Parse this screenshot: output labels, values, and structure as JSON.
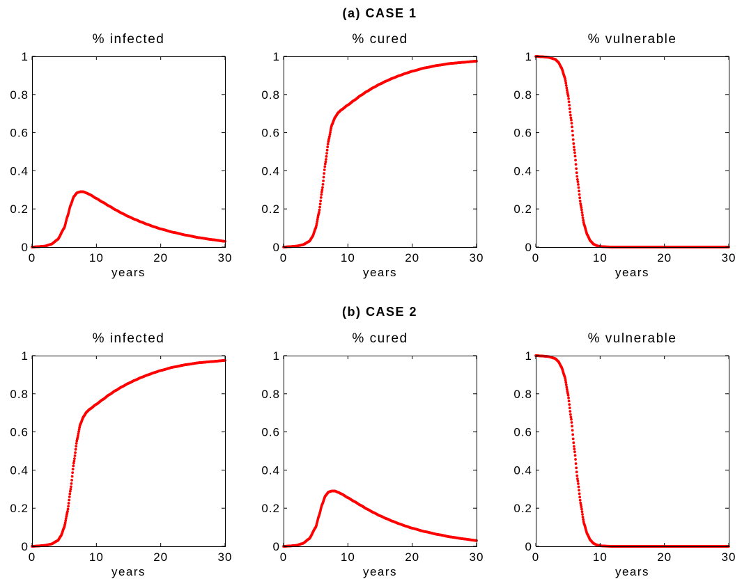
{
  "figure": {
    "rows": [
      {
        "title": "(a) CASE 1"
      },
      {
        "title": "(b) CASE 2"
      }
    ]
  },
  "chart_data": [
    {
      "type": "scatter",
      "row": 0,
      "col": 0,
      "title": "% infected",
      "xlabel": "years",
      "ylabel": "",
      "xlim": [
        0,
        30
      ],
      "ylim": [
        0,
        1
      ],
      "xticks": [
        0,
        10,
        20,
        30
      ],
      "yticks": [
        0,
        0.2,
        0.4,
        0.6,
        0.8,
        1
      ],
      "xtick_labels": [
        "0",
        "10",
        "20",
        "30"
      ],
      "ytick_labels": [
        "0",
        "0.2",
        "0.4",
        "0.6",
        "0.8",
        "1"
      ],
      "color": "#ff0000",
      "x": [
        0,
        1,
        2,
        3,
        4,
        5,
        5.5,
        6,
        6.5,
        7,
        7.5,
        8,
        8.5,
        9,
        10,
        11,
        12,
        13,
        14,
        15,
        16,
        17,
        18,
        19,
        20,
        22,
        24,
        26,
        28,
        30
      ],
      "y": [
        0.0,
        0.002,
        0.005,
        0.015,
        0.04,
        0.1,
        0.16,
        0.22,
        0.265,
        0.285,
        0.29,
        0.29,
        0.283,
        0.275,
        0.255,
        0.235,
        0.215,
        0.195,
        0.177,
        0.16,
        0.145,
        0.131,
        0.118,
        0.106,
        0.095,
        0.077,
        0.062,
        0.049,
        0.039,
        0.03
      ]
    },
    {
      "type": "scatter",
      "row": 0,
      "col": 1,
      "title": "% cured",
      "xlabel": "years",
      "ylabel": "",
      "xlim": [
        0,
        30
      ],
      "ylim": [
        0,
        1
      ],
      "xticks": [
        0,
        10,
        20,
        30
      ],
      "yticks": [
        0,
        0.2,
        0.4,
        0.6,
        0.8,
        1
      ],
      "xtick_labels": [
        "0",
        "10",
        "20",
        "30"
      ],
      "ytick_labels": [
        "0",
        "0.2",
        "0.4",
        "0.6",
        "0.8",
        "1"
      ],
      "color": "#ff0000",
      "x": [
        0,
        1,
        2,
        3,
        4,
        4.5,
        5,
        5.5,
        6,
        6.5,
        7,
        7.5,
        8,
        8.5,
        9,
        10,
        11,
        12,
        13,
        14,
        15,
        16,
        17,
        18,
        19,
        20,
        22,
        24,
        26,
        28,
        30
      ],
      "y": [
        0.0,
        0.002,
        0.005,
        0.012,
        0.03,
        0.055,
        0.1,
        0.18,
        0.3,
        0.44,
        0.56,
        0.64,
        0.68,
        0.705,
        0.72,
        0.745,
        0.77,
        0.795,
        0.817,
        0.837,
        0.855,
        0.871,
        0.886,
        0.899,
        0.911,
        0.922,
        0.94,
        0.953,
        0.963,
        0.969,
        0.975
      ]
    },
    {
      "type": "scatter",
      "row": 0,
      "col": 2,
      "title": "% vulnerable",
      "xlabel": "years",
      "ylabel": "",
      "xlim": [
        0,
        30
      ],
      "ylim": [
        0,
        1
      ],
      "xticks": [
        0,
        10,
        20,
        30
      ],
      "yticks": [
        0,
        0.2,
        0.4,
        0.6,
        0.8,
        1
      ],
      "xtick_labels": [
        "0",
        "10",
        "20",
        "30"
      ],
      "ytick_labels": [
        "0",
        "0.2",
        "0.4",
        "0.6",
        "0.8",
        "1"
      ],
      "color": "#ff0000",
      "x": [
        0,
        1,
        2,
        3,
        3.5,
        4,
        4.5,
        5,
        5.5,
        6,
        6.5,
        7,
        7.5,
        8,
        8.5,
        9,
        9.5,
        10,
        11,
        12,
        14,
        16,
        20,
        25,
        30
      ],
      "y": [
        1.0,
        0.998,
        0.995,
        0.985,
        0.97,
        0.94,
        0.89,
        0.8,
        0.67,
        0.51,
        0.35,
        0.22,
        0.12,
        0.065,
        0.032,
        0.015,
        0.007,
        0.003,
        0.001,
        0.0,
        0.0,
        0.0,
        0.0,
        0.0,
        0.0
      ]
    },
    {
      "type": "scatter",
      "row": 1,
      "col": 0,
      "title": "% infected",
      "xlabel": "years",
      "ylabel": "",
      "xlim": [
        0,
        30
      ],
      "ylim": [
        0,
        1
      ],
      "xticks": [
        0,
        10,
        20,
        30
      ],
      "yticks": [
        0,
        0.2,
        0.4,
        0.6,
        0.8,
        1
      ],
      "xtick_labels": [
        "0",
        "10",
        "20",
        "30"
      ],
      "ytick_labels": [
        "0",
        "0.2",
        "0.4",
        "0.6",
        "0.8",
        "1"
      ],
      "color": "#ff0000",
      "x": [
        0,
        1,
        2,
        3,
        4,
        4.5,
        5,
        5.5,
        6,
        6.5,
        7,
        7.5,
        8,
        8.5,
        9,
        10,
        11,
        12,
        13,
        14,
        15,
        16,
        17,
        18,
        19,
        20,
        22,
        24,
        26,
        28,
        30
      ],
      "y": [
        0.0,
        0.002,
        0.005,
        0.012,
        0.03,
        0.055,
        0.1,
        0.18,
        0.3,
        0.44,
        0.56,
        0.64,
        0.68,
        0.705,
        0.72,
        0.745,
        0.77,
        0.795,
        0.817,
        0.837,
        0.855,
        0.871,
        0.886,
        0.899,
        0.911,
        0.922,
        0.94,
        0.953,
        0.963,
        0.969,
        0.975
      ]
    },
    {
      "type": "scatter",
      "row": 1,
      "col": 1,
      "title": "% cured",
      "xlabel": "years",
      "ylabel": "",
      "xlim": [
        0,
        30
      ],
      "ylim": [
        0,
        1
      ],
      "xticks": [
        0,
        10,
        20,
        30
      ],
      "yticks": [
        0,
        0.2,
        0.4,
        0.6,
        0.8,
        1
      ],
      "xtick_labels": [
        "0",
        "10",
        "20",
        "30"
      ],
      "ytick_labels": [
        "0",
        "0.2",
        "0.4",
        "0.6",
        "0.8",
        "1"
      ],
      "color": "#ff0000",
      "x": [
        0,
        1,
        2,
        3,
        4,
        5,
        5.5,
        6,
        6.5,
        7,
        7.5,
        8,
        8.5,
        9,
        10,
        11,
        12,
        13,
        14,
        15,
        16,
        17,
        18,
        19,
        20,
        22,
        24,
        26,
        28,
        30
      ],
      "y": [
        0.0,
        0.002,
        0.005,
        0.015,
        0.04,
        0.1,
        0.16,
        0.22,
        0.265,
        0.285,
        0.29,
        0.29,
        0.283,
        0.275,
        0.255,
        0.235,
        0.215,
        0.195,
        0.177,
        0.16,
        0.145,
        0.131,
        0.118,
        0.106,
        0.095,
        0.077,
        0.062,
        0.049,
        0.039,
        0.03
      ]
    },
    {
      "type": "scatter",
      "row": 1,
      "col": 2,
      "title": "% vulnerable",
      "xlabel": "years",
      "ylabel": "",
      "xlim": [
        0,
        30
      ],
      "ylim": [
        0,
        1
      ],
      "xticks": [
        0,
        10,
        20,
        30
      ],
      "yticks": [
        0,
        0.2,
        0.4,
        0.6,
        0.8,
        1
      ],
      "xtick_labels": [
        "0",
        "10",
        "20",
        "30"
      ],
      "ytick_labels": [
        "0",
        "0.2",
        "0.4",
        "0.6",
        "0.8",
        "1"
      ],
      "color": "#ff0000",
      "x": [
        0,
        1,
        2,
        3,
        3.5,
        4,
        4.5,
        5,
        5.5,
        6,
        6.5,
        7,
        7.5,
        8,
        8.5,
        9,
        9.5,
        10,
        11,
        12,
        14,
        16,
        20,
        25,
        30
      ],
      "y": [
        1.0,
        0.998,
        0.995,
        0.985,
        0.97,
        0.94,
        0.89,
        0.8,
        0.67,
        0.51,
        0.35,
        0.22,
        0.12,
        0.065,
        0.032,
        0.015,
        0.007,
        0.003,
        0.001,
        0.0,
        0.0,
        0.0,
        0.0,
        0.0,
        0.0
      ]
    }
  ]
}
